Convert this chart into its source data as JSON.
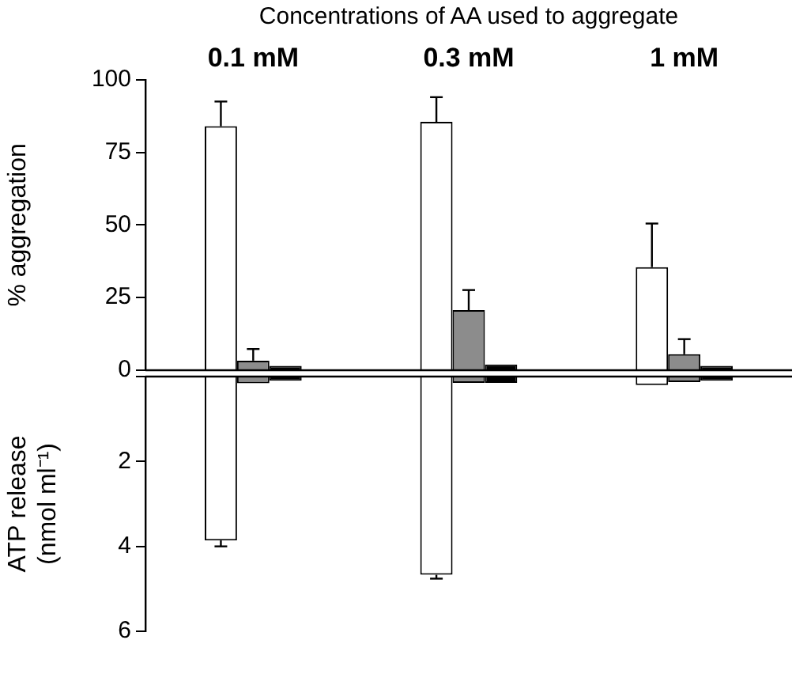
{
  "chart_data": [
    {
      "type": "bar",
      "title": "Concentrations of AA used to aggregate",
      "categories": [
        "0.1 mM",
        "0.3 mM",
        "1 mM"
      ],
      "ylabel": "% aggregation",
      "ylim": [
        0,
        100
      ],
      "yticks": [
        0,
        25,
        50,
        75,
        100
      ],
      "grid": false,
      "series": [
        {
          "color": "#ffffff",
          "values": [
            84,
            85.5,
            35.5
          ],
          "errors": [
            [
              84,
              92.5
            ],
            [
              85.5,
              94
            ],
            [
              35.5,
              50.5
            ]
          ]
        },
        {
          "color": "#8c8c8c",
          "values": [
            3.3,
            20.7,
            5.5
          ],
          "errors": [
            [
              3.3,
              7.3
            ],
            [
              20.7,
              27.6
            ],
            [
              5.5,
              10.7
            ]
          ]
        },
        {
          "color": "#000000",
          "values": [
            1.5,
            2,
            1.5
          ]
        }
      ]
    },
    {
      "type": "bar",
      "categories": [
        null,
        null,
        null
      ],
      "tick_labels": "y",
      "ylabel": "ATP release (nmol ml⁻¹)",
      "ylim": [
        6,
        0
      ],
      "yticks": [
        {
          "value": 0,
          "label": null
        },
        2,
        4,
        6
      ],
      "grid": false,
      "series": [
        {
          "color": "#ffffff",
          "values": [
            3.86,
            4.67,
            0.2
          ],
          "errors": [
            [
              3.86,
              4.0
            ],
            [
              4.67,
              4.76
            ],
            null
          ]
        },
        {
          "color": "#8c8c8c",
          "values": [
            0.16,
            0.15,
            0.13
          ]
        },
        {
          "color": "#000000",
          "values": [
            0.1,
            0.15,
            0.1
          ]
        }
      ]
    }
  ]
}
